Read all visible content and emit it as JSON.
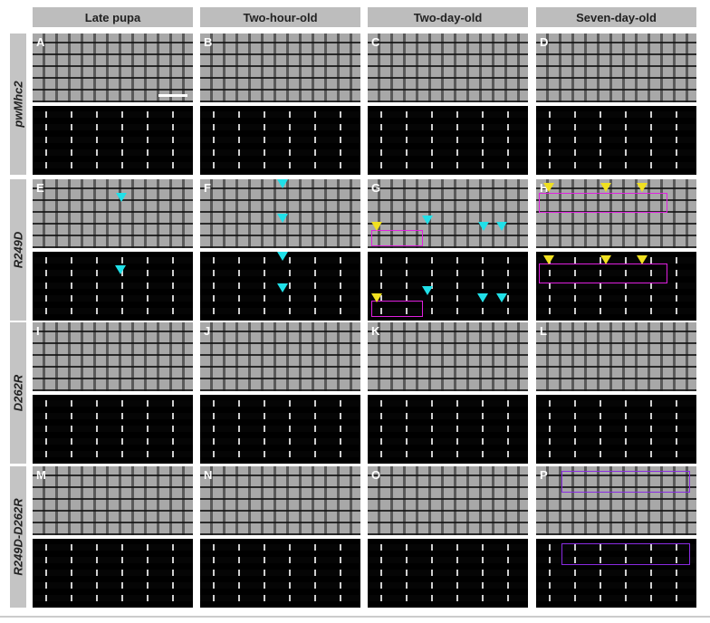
{
  "columns": [
    "Late pupa",
    "Two-hour-old",
    "Two-day-old",
    "Seven-day-old"
  ],
  "rows": [
    {
      "label": "pwMhc2",
      "panels": [
        "A",
        "B",
        "C",
        "D"
      ]
    },
    {
      "label": "R249D",
      "panels": [
        "E",
        "F",
        "G",
        "H"
      ]
    },
    {
      "label": "D262R",
      "panels": [
        "I",
        "J",
        "K",
        "L"
      ]
    },
    {
      "label": "R249D-D262R",
      "panels": [
        "M",
        "N",
        "O",
        "P"
      ]
    }
  ]
}
